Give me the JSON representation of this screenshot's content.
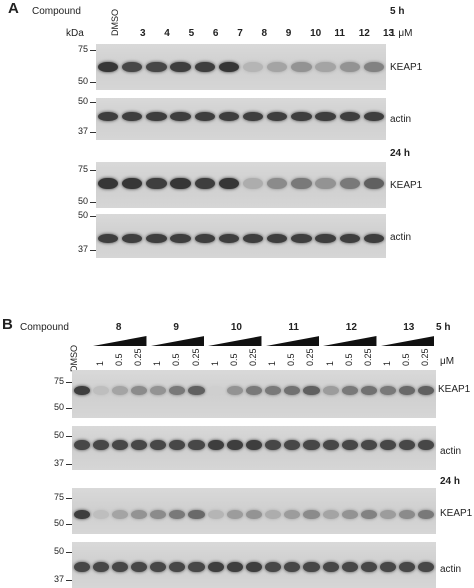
{
  "panel_a": {
    "letter": "A",
    "compound_label": "Compound",
    "dmso_label": "DMSO",
    "compounds": [
      "3",
      "4",
      "5",
      "6",
      "7",
      "8",
      "9",
      "10",
      "11",
      "12",
      "13"
    ],
    "kda_label": "kDa",
    "concentration_label": "1 μM",
    "time_5h": "5 h",
    "time_24h": "24 h",
    "markers_keap1": [
      "75",
      "50"
    ],
    "markers_actin": [
      "50",
      "37"
    ],
    "keap1_label": "KEAP1",
    "actin_label": "actin",
    "band_colors": {
      "strong": "#3a3a3a",
      "faint": "#b0b0b0"
    }
  },
  "panel_b": {
    "letter": "B",
    "compound_label": "Compound",
    "dmso_label": "DMSO",
    "compounds": [
      "8",
      "9",
      "10",
      "11",
      "12",
      "13"
    ],
    "doses": [
      "1",
      "0.5",
      "0.25"
    ],
    "unit_label": "μM",
    "time_5h": "5 h",
    "time_24h": "24 h",
    "markers_keap1": [
      "75",
      "50"
    ],
    "markers_actin": [
      "50",
      "37"
    ],
    "keap1_label": "KEAP1",
    "keap1_label_24h": "KEAP1",
    "actin_label": "actin"
  }
}
